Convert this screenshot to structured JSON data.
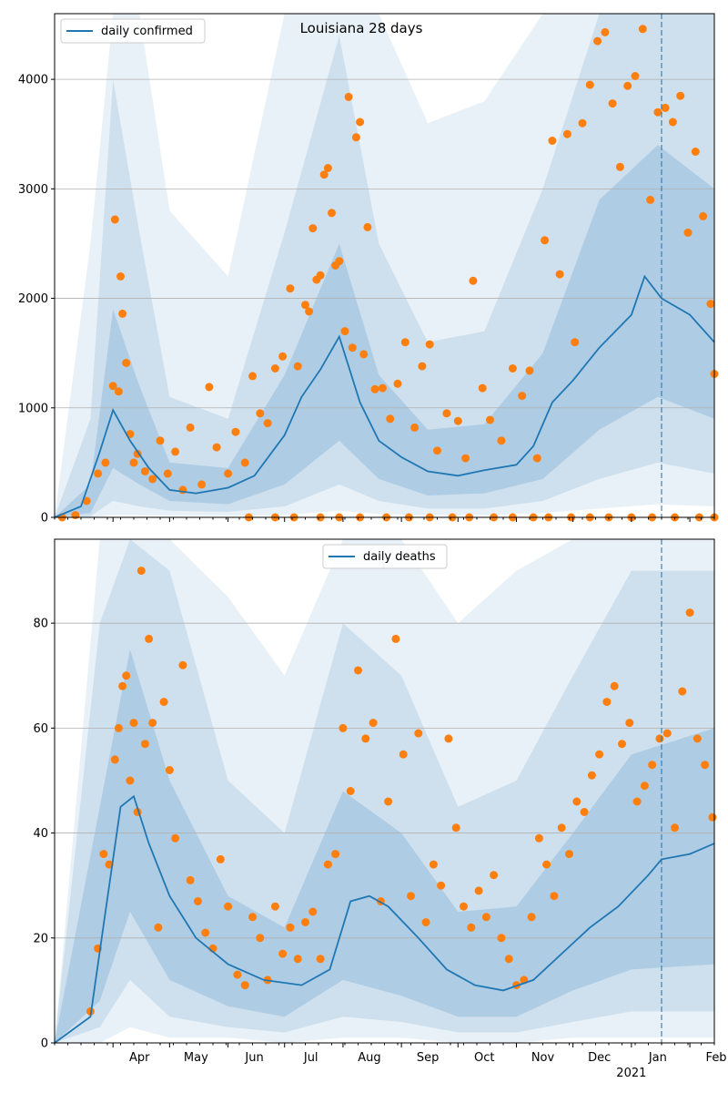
{
  "chart_data": [
    {
      "type": "line",
      "title": "Louisiana 28 days",
      "legend": {
        "label": "daily confirmed",
        "placement": "top-left"
      },
      "x_axis": {
        "range": [
          "2020-03-01",
          "2021-02-14"
        ],
        "month_ticks": [
          {
            "date": "2020-04-01",
            "label": "Apr"
          },
          {
            "date": "2020-05-01",
            "label": "May"
          },
          {
            "date": "2020-06-01",
            "label": "Jun"
          },
          {
            "date": "2020-07-01",
            "label": "Jul"
          },
          {
            "date": "2020-08-01",
            "label": "Aug"
          },
          {
            "date": "2020-09-01",
            "label": "Sep"
          },
          {
            "date": "2020-10-01",
            "label": "Oct"
          },
          {
            "date": "2020-11-01",
            "label": "Nov"
          },
          {
            "date": "2020-12-01",
            "label": "Dec"
          },
          {
            "date": "2021-01-01",
            "label": "Jan"
          },
          {
            "date": "2021-02-01",
            "label": "Feb"
          }
        ],
        "year_label": {
          "date": "2021-01-01",
          "label": "2021"
        }
      },
      "y_axis": {
        "ylim": [
          0,
          4600
        ],
        "ticks": [
          0,
          1000,
          2000,
          3000,
          4000
        ]
      },
      "grid": "horizontal",
      "vline_date": "2021-01-17",
      "series": {
        "line": {
          "x": [
            "2020-03-01",
            "2020-03-15",
            "2020-03-25",
            "2020-04-01",
            "2020-04-10",
            "2020-04-20",
            "2020-05-01",
            "2020-05-15",
            "2020-06-01",
            "2020-06-15",
            "2020-07-01",
            "2020-07-10",
            "2020-07-20",
            "2020-07-30",
            "2020-08-10",
            "2020-08-20",
            "2020-09-01",
            "2020-09-15",
            "2020-10-01",
            "2020-10-15",
            "2020-11-01",
            "2020-11-10",
            "2020-11-20",
            "2020-12-01",
            "2020-12-15",
            "2021-01-01",
            "2021-01-08",
            "2021-01-17",
            "2021-02-01",
            "2021-02-14"
          ],
          "values": [
            0,
            100,
            600,
            980,
            700,
            450,
            250,
            220,
            270,
            380,
            750,
            1100,
            1350,
            1650,
            1050,
            700,
            550,
            420,
            380,
            430,
            480,
            650,
            1050,
            1250,
            1550,
            1850,
            2200,
            2000,
            1850,
            1600
          ]
        },
        "band_inner": {
          "x": [
            "2020-03-01",
            "2020-03-20",
            "2020-04-01",
            "2020-04-15",
            "2020-05-01",
            "2020-06-01",
            "2020-07-01",
            "2020-07-30",
            "2020-08-20",
            "2020-09-15",
            "2020-10-15",
            "2020-11-15",
            "2020-12-15",
            "2021-01-15",
            "2021-02-14"
          ],
          "lower": [
            0,
            40,
            450,
            300,
            150,
            120,
            300,
            700,
            350,
            200,
            220,
            350,
            800,
            1100,
            900
          ],
          "upper": [
            0,
            300,
            1900,
            1200,
            500,
            450,
            1300,
            2500,
            1300,
            800,
            850,
            1500,
            2900,
            3400,
            3000
          ]
        },
        "band_mid": {
          "x": [
            "2020-03-01",
            "2020-03-20",
            "2020-04-01",
            "2020-04-15",
            "2020-05-01",
            "2020-06-01",
            "2020-07-01",
            "2020-07-30",
            "2020-08-20",
            "2020-09-15",
            "2020-10-15",
            "2020-11-15",
            "2020-12-15",
            "2021-01-15",
            "2021-02-14"
          ],
          "lower": [
            0,
            10,
            150,
            100,
            60,
            50,
            100,
            300,
            150,
            80,
            80,
            150,
            350,
            500,
            400
          ],
          "upper": [
            0,
            900,
            4000,
            2600,
            1100,
            900,
            2600,
            4400,
            2500,
            1600,
            1700,
            3000,
            4600,
            4600,
            4600
          ]
        },
        "band_outer": {
          "x": [
            "2020-03-01",
            "2020-03-20",
            "2020-04-01",
            "2020-04-15",
            "2020-05-01",
            "2020-06-01",
            "2020-07-01",
            "2020-07-30",
            "2020-08-20",
            "2020-09-15",
            "2020-10-15",
            "2020-11-15",
            "2020-12-15",
            "2021-01-15",
            "2021-02-14"
          ],
          "lower": [
            0,
            0,
            20,
            20,
            15,
            15,
            20,
            60,
            30,
            20,
            20,
            40,
            80,
            120,
            100
          ],
          "upper": [
            0,
            2500,
            4600,
            4600,
            2800,
            2200,
            4600,
            4600,
            4600,
            3600,
            3800,
            4600,
            4600,
            4600,
            4600
          ]
        },
        "points": {
          "x": [
            "2020-03-05",
            "2020-03-12",
            "2020-03-18",
            "2020-03-24",
            "2020-03-28",
            "2020-04-01",
            "2020-04-02",
            "2020-04-04",
            "2020-04-05",
            "2020-04-06",
            "2020-04-08",
            "2020-04-10",
            "2020-04-12",
            "2020-04-14",
            "2020-04-18",
            "2020-04-22",
            "2020-04-26",
            "2020-04-30",
            "2020-05-04",
            "2020-05-08",
            "2020-05-12",
            "2020-05-18",
            "2020-05-22",
            "2020-05-26",
            "2020-06-01",
            "2020-06-05",
            "2020-06-10",
            "2020-06-14",
            "2020-06-18",
            "2020-06-22",
            "2020-06-26",
            "2020-06-30",
            "2020-07-04",
            "2020-07-08",
            "2020-07-12",
            "2020-07-14",
            "2020-07-16",
            "2020-07-18",
            "2020-07-20",
            "2020-07-22",
            "2020-07-24",
            "2020-07-26",
            "2020-07-28",
            "2020-07-30",
            "2020-08-02",
            "2020-08-04",
            "2020-08-06",
            "2020-08-08",
            "2020-08-10",
            "2020-08-12",
            "2020-08-14",
            "2020-08-18",
            "2020-08-22",
            "2020-08-26",
            "2020-08-30",
            "2020-09-03",
            "2020-09-08",
            "2020-09-12",
            "2020-09-16",
            "2020-09-20",
            "2020-09-25",
            "2020-10-01",
            "2020-10-05",
            "2020-10-09",
            "2020-10-14",
            "2020-10-18",
            "2020-10-24",
            "2020-10-30",
            "2020-11-04",
            "2020-11-08",
            "2020-11-12",
            "2020-11-16",
            "2020-11-20",
            "2020-11-24",
            "2020-11-28",
            "2020-12-02",
            "2020-12-06",
            "2020-12-10",
            "2020-12-14",
            "2020-12-18",
            "2020-12-22",
            "2020-12-26",
            "2020-12-30",
            "2021-01-03",
            "2021-01-07",
            "2021-01-11",
            "2021-01-15",
            "2021-01-19",
            "2021-01-23",
            "2021-01-27",
            "2021-01-31",
            "2021-02-04",
            "2021-02-08",
            "2021-02-12",
            "2021-02-14"
          ],
          "values": [
            0,
            20,
            150,
            400,
            500,
            1200,
            2720,
            1150,
            2200,
            1860,
            1410,
            760,
            500,
            580,
            420,
            350,
            700,
            400,
            600,
            250,
            820,
            300,
            1190,
            640,
            400,
            780,
            500,
            1290,
            950,
            860,
            1360,
            1470,
            2090,
            1380,
            1940,
            1880,
            2640,
            2170,
            2210,
            3130,
            3190,
            2780,
            2300,
            2340,
            1700,
            3840,
            1550,
            3470,
            3610,
            1490,
            2650,
            1170,
            1180,
            900,
            1220,
            1600,
            820,
            1380,
            1580,
            610,
            950,
            880,
            540,
            2160,
            1180,
            890,
            700,
            1360,
            1110,
            1340,
            540,
            2530,
            3440,
            2220,
            3500,
            1600,
            3600,
            3950,
            4350,
            4430,
            3780,
            3200,
            3940,
            4030,
            4460,
            2900,
            3700,
            3740,
            3610,
            3850,
            2600,
            3340,
            2750,
            1950,
            1310
          ],
          "zeros": [
            "2020-06-12",
            "2020-06-26",
            "2020-07-06",
            "2020-07-20",
            "2020-07-30",
            "2020-08-10",
            "2020-08-24",
            "2020-09-05",
            "2020-09-16",
            "2020-09-28",
            "2020-10-07",
            "2020-10-20",
            "2020-10-30",
            "2020-11-10",
            "2020-11-18",
            "2020-11-30",
            "2020-12-10",
            "2020-12-20",
            "2021-01-01",
            "2021-01-12",
            "2021-01-24",
            "2021-02-06",
            "2021-02-14"
          ]
        }
      }
    },
    {
      "type": "line",
      "title": "",
      "legend": {
        "label": "daily deaths",
        "placement": "top-center"
      },
      "x_axis": {
        "range": [
          "2020-03-01",
          "2021-02-14"
        ]
      },
      "y_axis": {
        "ylim": [
          0,
          96
        ],
        "ticks": [
          0,
          20,
          40,
          60,
          80
        ]
      },
      "grid": "horizontal",
      "vline_date": "2021-01-17",
      "series": {
        "line": {
          "x": [
            "2020-03-01",
            "2020-03-20",
            "2020-03-28",
            "2020-04-05",
            "2020-04-12",
            "2020-04-20",
            "2020-05-01",
            "2020-05-15",
            "2020-06-01",
            "2020-06-20",
            "2020-07-10",
            "2020-07-25",
            "2020-08-05",
            "2020-08-15",
            "2020-08-25",
            "2020-09-10",
            "2020-09-25",
            "2020-10-10",
            "2020-10-25",
            "2020-11-10",
            "2020-11-25",
            "2020-12-10",
            "2020-12-25",
            "2021-01-10",
            "2021-01-17",
            "2021-02-01",
            "2021-02-14"
          ],
          "values": [
            0,
            5,
            25,
            45,
            47,
            38,
            28,
            20,
            15,
            12,
            11,
            14,
            27,
            28,
            26,
            20,
            14,
            11,
            10,
            12,
            17,
            22,
            26,
            32,
            35,
            36,
            38
          ]
        },
        "band_inner": {
          "x": [
            "2020-03-01",
            "2020-03-25",
            "2020-04-10",
            "2020-05-01",
            "2020-06-01",
            "2020-07-01",
            "2020-08-01",
            "2020-09-01",
            "2020-10-01",
            "2020-11-01",
            "2020-12-01",
            "2021-01-01",
            "2021-02-14"
          ],
          "lower": [
            0,
            8,
            25,
            12,
            7,
            5,
            12,
            9,
            5,
            5,
            10,
            14,
            15
          ],
          "upper": [
            0,
            45,
            75,
            50,
            28,
            22,
            48,
            40,
            25,
            26,
            40,
            55,
            60
          ]
        },
        "band_mid": {
          "x": [
            "2020-03-01",
            "2020-03-25",
            "2020-04-10",
            "2020-05-01",
            "2020-06-01",
            "2020-07-01",
            "2020-08-01",
            "2020-09-01",
            "2020-10-01",
            "2020-11-01",
            "2020-12-01",
            "2021-01-01",
            "2021-02-14"
          ],
          "lower": [
            0,
            3,
            12,
            5,
            3,
            2,
            5,
            4,
            2,
            2,
            4,
            6,
            6
          ],
          "upper": [
            0,
            80,
            96,
            90,
            50,
            40,
            80,
            70,
            45,
            50,
            70,
            90,
            90
          ]
        },
        "band_outer": {
          "x": [
            "2020-03-01",
            "2020-03-25",
            "2020-04-10",
            "2020-05-01",
            "2020-06-01",
            "2020-07-01",
            "2020-08-01",
            "2020-09-01",
            "2020-10-01",
            "2020-11-01",
            "2020-12-01",
            "2021-01-01",
            "2021-02-14"
          ],
          "lower": [
            0,
            0,
            3,
            1,
            1,
            0,
            1,
            1,
            0,
            0,
            1,
            1,
            1
          ],
          "upper": [
            0,
            96,
            96,
            96,
            85,
            70,
            96,
            96,
            80,
            90,
            96,
            96,
            96
          ]
        },
        "points": {
          "x": [
            "2020-03-20",
            "2020-03-24",
            "2020-03-27",
            "2020-03-30",
            "2020-04-02",
            "2020-04-04",
            "2020-04-06",
            "2020-04-08",
            "2020-04-10",
            "2020-04-12",
            "2020-04-14",
            "2020-04-16",
            "2020-04-18",
            "2020-04-20",
            "2020-04-22",
            "2020-04-25",
            "2020-04-28",
            "2020-05-01",
            "2020-05-04",
            "2020-05-08",
            "2020-05-12",
            "2020-05-16",
            "2020-05-20",
            "2020-05-24",
            "2020-05-28",
            "2020-06-01",
            "2020-06-06",
            "2020-06-10",
            "2020-06-14",
            "2020-06-18",
            "2020-06-22",
            "2020-06-26",
            "2020-06-30",
            "2020-07-04",
            "2020-07-08",
            "2020-07-12",
            "2020-07-16",
            "2020-07-20",
            "2020-07-24",
            "2020-07-28",
            "2020-08-01",
            "2020-08-05",
            "2020-08-09",
            "2020-08-13",
            "2020-08-17",
            "2020-08-21",
            "2020-08-25",
            "2020-08-29",
            "2020-09-02",
            "2020-09-06",
            "2020-09-10",
            "2020-09-14",
            "2020-09-18",
            "2020-09-22",
            "2020-09-26",
            "2020-09-30",
            "2020-10-04",
            "2020-10-08",
            "2020-10-12",
            "2020-10-16",
            "2020-10-20",
            "2020-10-24",
            "2020-10-28",
            "2020-11-01",
            "2020-11-05",
            "2020-11-09",
            "2020-11-13",
            "2020-11-17",
            "2020-11-21",
            "2020-11-25",
            "2020-11-29",
            "2020-12-03",
            "2020-12-07",
            "2020-12-11",
            "2020-12-15",
            "2020-12-19",
            "2020-12-23",
            "2020-12-27",
            "2020-12-31",
            "2021-01-04",
            "2021-01-08",
            "2021-01-12",
            "2021-01-16",
            "2021-01-20",
            "2021-01-24",
            "2021-01-28",
            "2021-02-01",
            "2021-02-05",
            "2021-02-09",
            "2021-02-13"
          ],
          "values": [
            6,
            18,
            36,
            34,
            54,
            60,
            68,
            70,
            50,
            61,
            44,
            90,
            57,
            77,
            61,
            22,
            65,
            52,
            39,
            72,
            31,
            27,
            21,
            18,
            35,
            26,
            13,
            11,
            24,
            20,
            12,
            26,
            17,
            22,
            16,
            23,
            25,
            16,
            34,
            36,
            60,
            48,
            71,
            58,
            61,
            27,
            46,
            77,
            55,
            28,
            59,
            23,
            34,
            30,
            58,
            41,
            26,
            22,
            29,
            24,
            32,
            20,
            16,
            11,
            12,
            24,
            39,
            34,
            28,
            41,
            36,
            46,
            44,
            51,
            55,
            65,
            68,
            57,
            61,
            46,
            49,
            53,
            58,
            59,
            41,
            67,
            82,
            58,
            53,
            43
          ]
        }
      }
    }
  ]
}
